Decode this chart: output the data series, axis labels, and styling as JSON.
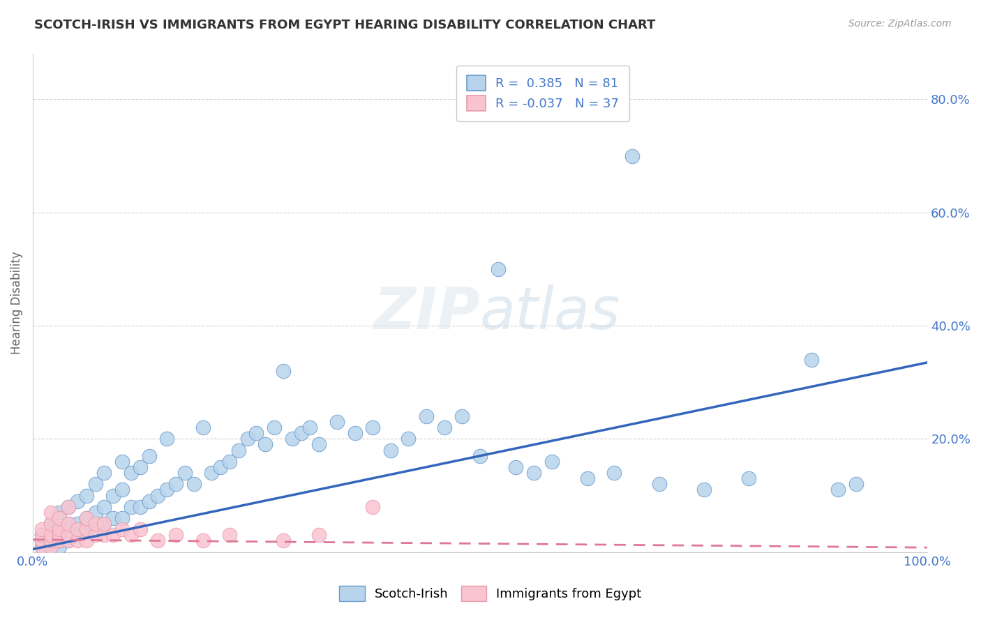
{
  "title": "SCOTCH-IRISH VS IMMIGRANTS FROM EGYPT HEARING DISABILITY CORRELATION CHART",
  "source": "Source: ZipAtlas.com",
  "ylabel": "Hearing Disability",
  "yticks": [
    0.0,
    0.2,
    0.4,
    0.6,
    0.8
  ],
  "ytick_labels": [
    "",
    "20.0%",
    "40.0%",
    "60.0%",
    "80.0%"
  ],
  "xlim": [
    0.0,
    1.0
  ],
  "ylim": [
    0.0,
    0.88
  ],
  "series1_name": "Scotch-Irish",
  "series1_R": 0.385,
  "series1_N": 81,
  "series1_color": "#b8d4ec",
  "series1_edge_color": "#6699cc",
  "series1_line_color": "#3366bb",
  "series2_name": "Immigrants from Egypt",
  "series2_R": -0.037,
  "series2_N": 37,
  "series2_color": "#f9c4d0",
  "series2_edge_color": "#e899aa",
  "series2_line_color": "#dd7799",
  "background_color": "#ffffff",
  "grid_color": "#c8c8c8",
  "title_color": "#333333",
  "axis_label_color": "#4477cc",
  "blue_line_y0": 0.005,
  "blue_line_y1": 0.335,
  "pink_line_y0": 0.022,
  "pink_line_y1": 0.008,
  "scotch_x": [
    0.01,
    0.01,
    0.01,
    0.02,
    0.02,
    0.02,
    0.02,
    0.02,
    0.03,
    0.03,
    0.03,
    0.03,
    0.04,
    0.04,
    0.04,
    0.04,
    0.05,
    0.05,
    0.05,
    0.06,
    0.06,
    0.06,
    0.07,
    0.07,
    0.07,
    0.08,
    0.08,
    0.08,
    0.09,
    0.09,
    0.1,
    0.1,
    0.1,
    0.11,
    0.11,
    0.12,
    0.12,
    0.13,
    0.13,
    0.14,
    0.15,
    0.15,
    0.16,
    0.17,
    0.18,
    0.19,
    0.2,
    0.21,
    0.22,
    0.23,
    0.24,
    0.25,
    0.26,
    0.27,
    0.28,
    0.29,
    0.3,
    0.31,
    0.32,
    0.34,
    0.36,
    0.38,
    0.4,
    0.42,
    0.44,
    0.46,
    0.48,
    0.5,
    0.52,
    0.54,
    0.56,
    0.58,
    0.62,
    0.65,
    0.67,
    0.7,
    0.75,
    0.8,
    0.87,
    0.9,
    0.92
  ],
  "scotch_y": [
    0.01,
    0.02,
    0.03,
    0.01,
    0.02,
    0.03,
    0.04,
    0.05,
    0.01,
    0.02,
    0.04,
    0.07,
    0.02,
    0.03,
    0.05,
    0.08,
    0.03,
    0.05,
    0.09,
    0.04,
    0.06,
    0.1,
    0.04,
    0.07,
    0.12,
    0.05,
    0.08,
    0.14,
    0.06,
    0.1,
    0.06,
    0.11,
    0.16,
    0.08,
    0.14,
    0.08,
    0.15,
    0.09,
    0.17,
    0.1,
    0.11,
    0.2,
    0.12,
    0.14,
    0.12,
    0.22,
    0.14,
    0.15,
    0.16,
    0.18,
    0.2,
    0.21,
    0.19,
    0.22,
    0.32,
    0.2,
    0.21,
    0.22,
    0.19,
    0.23,
    0.21,
    0.22,
    0.18,
    0.2,
    0.24,
    0.22,
    0.24,
    0.17,
    0.5,
    0.15,
    0.14,
    0.16,
    0.13,
    0.14,
    0.7,
    0.12,
    0.11,
    0.13,
    0.34,
    0.11,
    0.12
  ],
  "egypt_x": [
    0.01,
    0.01,
    0.01,
    0.01,
    0.02,
    0.02,
    0.02,
    0.02,
    0.02,
    0.03,
    0.03,
    0.03,
    0.03,
    0.04,
    0.04,
    0.04,
    0.04,
    0.05,
    0.05,
    0.06,
    0.06,
    0.06,
    0.07,
    0.07,
    0.08,
    0.08,
    0.09,
    0.1,
    0.11,
    0.12,
    0.14,
    0.16,
    0.19,
    0.22,
    0.28,
    0.32,
    0.38
  ],
  "egypt_y": [
    0.01,
    0.02,
    0.03,
    0.04,
    0.01,
    0.02,
    0.03,
    0.05,
    0.07,
    0.02,
    0.03,
    0.04,
    0.06,
    0.02,
    0.03,
    0.05,
    0.08,
    0.02,
    0.04,
    0.02,
    0.04,
    0.06,
    0.03,
    0.05,
    0.03,
    0.05,
    0.03,
    0.04,
    0.03,
    0.04,
    0.02,
    0.03,
    0.02,
    0.03,
    0.02,
    0.03,
    0.08
  ]
}
